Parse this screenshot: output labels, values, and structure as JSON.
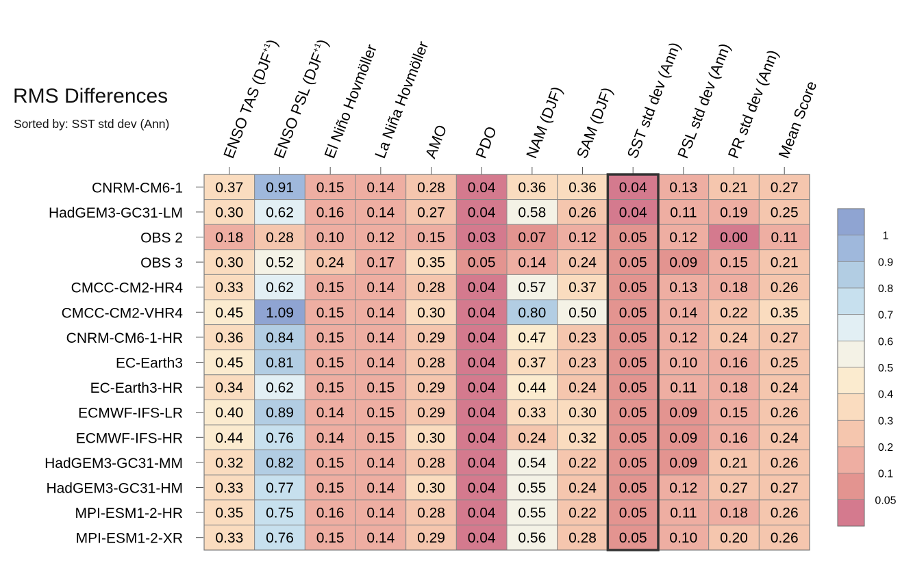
{
  "title": "RMS Differences",
  "sort_prefix": "Sorted by:",
  "sort_key": "SST std dev (Ann)",
  "chart_data": {
    "type": "heatmap",
    "title": "RMS Differences",
    "subtitle": "Sorted by: SST std dev (Ann)",
    "columns": [
      {
        "main": "ENSO TAS (DJF",
        "sup": "+1",
        "tail": ")"
      },
      {
        "main": "ENSO PSL (DJF",
        "sup": "+1",
        "tail": ")"
      },
      {
        "main": "El Niño Hovmöller",
        "sup": "",
        "tail": ""
      },
      {
        "main": "La Niña Hovmöller",
        "sup": "",
        "tail": ""
      },
      {
        "main": "AMO",
        "sup": "",
        "tail": ""
      },
      {
        "main": "PDO",
        "sup": "",
        "tail": ""
      },
      {
        "main": "NAM (DJF)",
        "sup": "",
        "tail": ""
      },
      {
        "main": "SAM (DJF)",
        "sup": "",
        "tail": ""
      },
      {
        "main": "SST std dev (Ann)",
        "sup": "",
        "tail": ""
      },
      {
        "main": "PSL std dev (Ann)",
        "sup": "",
        "tail": ""
      },
      {
        "main": "PR std dev (Ann)",
        "sup": "",
        "tail": ""
      },
      {
        "main": "Mean Score",
        "sup": "",
        "tail": ""
      }
    ],
    "highlight_column": 8,
    "rows": [
      "CNRM-CM6-1",
      "HadGEM3-GC31-LM",
      "OBS 2",
      "OBS 3",
      "CMCC-CM2-HR4",
      "CMCC-CM2-VHR4",
      "CNRM-CM6-1-HR",
      "EC-Earth3",
      "EC-Earth3-HR",
      "ECMWF-IFS-LR",
      "ECMWF-IFS-HR",
      "HadGEM3-GC31-MM",
      "HadGEM3-GC31-HM",
      "MPI-ESM1-2-HR",
      "MPI-ESM1-2-XR"
    ],
    "values": [
      [
        "0.37",
        "0.91",
        "0.15",
        "0.14",
        "0.28",
        "0.04",
        "0.36",
        "0.36",
        "0.04",
        "0.13",
        "0.21",
        "0.27"
      ],
      [
        "0.30",
        "0.62",
        "0.16",
        "0.14",
        "0.27",
        "0.04",
        "0.58",
        "0.26",
        "0.04",
        "0.11",
        "0.19",
        "0.25"
      ],
      [
        "0.18",
        "0.28",
        "0.10",
        "0.12",
        "0.15",
        "0.03",
        "0.07",
        "0.12",
        "0.05",
        "0.12",
        "0.00",
        "0.11"
      ],
      [
        "0.30",
        "0.52",
        "0.24",
        "0.17",
        "0.35",
        "0.05",
        "0.14",
        "0.24",
        "0.05",
        "0.09",
        "0.15",
        "0.21"
      ],
      [
        "0.33",
        "0.62",
        "0.15",
        "0.14",
        "0.28",
        "0.04",
        "0.57",
        "0.37",
        "0.05",
        "0.13",
        "0.18",
        "0.26"
      ],
      [
        "0.45",
        "1.09",
        "0.15",
        "0.14",
        "0.30",
        "0.04",
        "0.80",
        "0.50",
        "0.05",
        "0.14",
        "0.22",
        "0.35"
      ],
      [
        "0.36",
        "0.84",
        "0.15",
        "0.14",
        "0.29",
        "0.04",
        "0.47",
        "0.23",
        "0.05",
        "0.12",
        "0.24",
        "0.27"
      ],
      [
        "0.45",
        "0.81",
        "0.15",
        "0.14",
        "0.28",
        "0.04",
        "0.37",
        "0.23",
        "0.05",
        "0.10",
        "0.16",
        "0.25"
      ],
      [
        "0.34",
        "0.62",
        "0.15",
        "0.15",
        "0.29",
        "0.04",
        "0.44",
        "0.24",
        "0.05",
        "0.11",
        "0.18",
        "0.24"
      ],
      [
        "0.40",
        "0.89",
        "0.14",
        "0.15",
        "0.29",
        "0.04",
        "0.33",
        "0.30",
        "0.05",
        "0.09",
        "0.15",
        "0.26"
      ],
      [
        "0.44",
        "0.76",
        "0.14",
        "0.15",
        "0.30",
        "0.04",
        "0.24",
        "0.32",
        "0.05",
        "0.09",
        "0.16",
        "0.24"
      ],
      [
        "0.32",
        "0.82",
        "0.15",
        "0.14",
        "0.28",
        "0.04",
        "0.54",
        "0.22",
        "0.05",
        "0.09",
        "0.21",
        "0.26"
      ],
      [
        "0.33",
        "0.77",
        "0.15",
        "0.14",
        "0.30",
        "0.04",
        "0.55",
        "0.24",
        "0.05",
        "0.12",
        "0.27",
        "0.27"
      ],
      [
        "0.35",
        "0.75",
        "0.16",
        "0.14",
        "0.28",
        "0.04",
        "0.55",
        "0.22",
        "0.05",
        "0.11",
        "0.18",
        "0.26"
      ],
      [
        "0.33",
        "0.76",
        "0.15",
        "0.14",
        "0.29",
        "0.04",
        "0.56",
        "0.28",
        "0.05",
        "0.10",
        "0.20",
        "0.26"
      ]
    ],
    "color_bins": {
      "boundaries": [
        0.05,
        0.1,
        0.2,
        0.3,
        0.4,
        0.5,
        0.6,
        0.7,
        0.8,
        0.9,
        1
      ],
      "colors": [
        "#d47a8e",
        "#e39490",
        "#eeaea2",
        "#f5c6ae",
        "#fadcbf",
        "#fbebcf",
        "#f4f2e6",
        "#e2eff4",
        "#c7e0ee",
        "#b2cde3",
        "#9fb8dc",
        "#8fa4d2"
      ]
    },
    "legend_labels": [
      "1",
      "0.9",
      "0.8",
      "0.7",
      "0.6",
      "0.5",
      "0.4",
      "0.3",
      "0.2",
      "0.1",
      "0.05"
    ]
  }
}
